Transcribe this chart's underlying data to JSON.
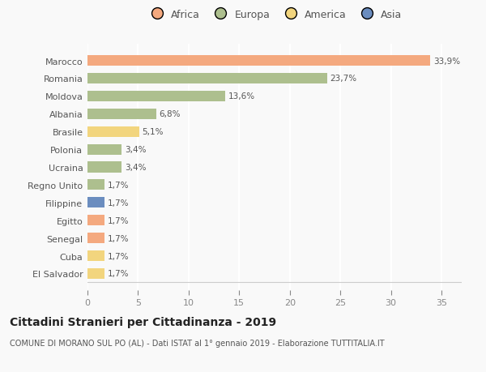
{
  "categories": [
    "Marocco",
    "Romania",
    "Moldova",
    "Albania",
    "Brasile",
    "Polonia",
    "Ucraina",
    "Regno Unito",
    "Filippine",
    "Egitto",
    "Senegal",
    "Cuba",
    "El Salvador"
  ],
  "values": [
    33.9,
    23.7,
    13.6,
    6.8,
    5.1,
    3.4,
    3.4,
    1.7,
    1.7,
    1.7,
    1.7,
    1.7,
    1.7
  ],
  "labels": [
    "33,9%",
    "23,7%",
    "13,6%",
    "6,8%",
    "5,1%",
    "3,4%",
    "3,4%",
    "1,7%",
    "1,7%",
    "1,7%",
    "1,7%",
    "1,7%",
    "1,7%"
  ],
  "colors": [
    "#F4A97F",
    "#ADBF8E",
    "#ADBF8E",
    "#ADBF8E",
    "#F2D57E",
    "#ADBF8E",
    "#ADBF8E",
    "#ADBF8E",
    "#6B8DBF",
    "#F4A97F",
    "#F4A97F",
    "#F2D57E",
    "#F2D57E"
  ],
  "legend_labels": [
    "Africa",
    "Europa",
    "America",
    "Asia"
  ],
  "legend_colors": [
    "#F4A97F",
    "#ADBF8E",
    "#F2D57E",
    "#6B8DBF"
  ],
  "xlim": [
    0,
    37
  ],
  "xticks": [
    0,
    5,
    10,
    15,
    20,
    25,
    30,
    35
  ],
  "title": "Cittadini Stranieri per Cittadinanza - 2019",
  "subtitle": "COMUNE DI MORANO SUL PO (AL) - Dati ISTAT al 1° gennaio 2019 - Elaborazione TUTTITALIA.IT",
  "background_color": "#F9F9F9",
  "grid_color": "#FFFFFF",
  "bar_height": 0.6
}
